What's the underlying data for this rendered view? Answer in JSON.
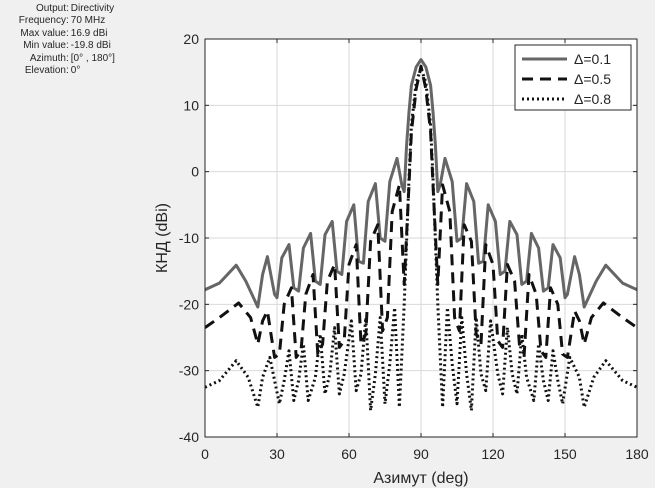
{
  "info_panel": [
    {
      "label": "Output",
      "value": "Directivity"
    },
    {
      "label": "Frequency",
      "value": "70 MHz"
    },
    {
      "label": "Max value",
      "value": "16.9 dBi"
    },
    {
      "label": "Min value",
      "value": "-19.8 dBi"
    },
    {
      "label": "Azimuth",
      "value": "[0° , 180°]"
    },
    {
      "label": "Elevation",
      "value": "0°"
    }
  ],
  "chart_data": {
    "type": "line",
    "title": "",
    "xlabel": "Азимут (deg)",
    "ylabel": "КНД (dBi)",
    "xlim": [
      0,
      180
    ],
    "ylim": [
      -40,
      20
    ],
    "xticks": [
      0,
      30,
      60,
      90,
      120,
      150,
      180
    ],
    "yticks": [
      20,
      10,
      0,
      -10,
      -20,
      -30,
      -40
    ],
    "xtick_labels": [
      "0",
      "30",
      "60",
      "90",
      "120",
      "150",
      "180"
    ],
    "ytick_labels": [
      "20",
      "10",
      "0",
      "-10",
      "-20",
      "-30",
      "-40"
    ],
    "grid": true,
    "legend_position": "top-right",
    "series": [
      {
        "name": "Δ=0.1",
        "style": "solid",
        "color": "#666666",
        "x": [
          0,
          6,
          13,
          17,
          22,
          24,
          26,
          29,
          30,
          32,
          35,
          37,
          39,
          41,
          44,
          46,
          48,
          50,
          53,
          55,
          57,
          59,
          62,
          64,
          66,
          68,
          71,
          73,
          75,
          77,
          80,
          82,
          83,
          84,
          85,
          86,
          88,
          90,
          92,
          94,
          95,
          96,
          97,
          98,
          100,
          103,
          105,
          107,
          109,
          112,
          114,
          116,
          118,
          121,
          123,
          125,
          127,
          130,
          132,
          134,
          136,
          139,
          141,
          143,
          145,
          148,
          150,
          151,
          154,
          156,
          158,
          163,
          167,
          174,
          180
        ],
        "y": [
          -17.8,
          -16.8,
          -14.1,
          -16.5,
          -20.4,
          -15.5,
          -12.8,
          -18.5,
          -19.0,
          -13.0,
          -11.0,
          -17.5,
          -18.0,
          -11.5,
          -9.3,
          -16.5,
          -17.0,
          -9.5,
          -7.5,
          -15.0,
          -15.5,
          -7.5,
          -5.0,
          -13.5,
          -13.8,
          -4.5,
          -1.8,
          -10.0,
          -10.5,
          -1.5,
          2.0,
          -2.0,
          -3.0,
          4.0,
          9.0,
          13.0,
          15.8,
          16.9,
          15.8,
          13.0,
          9.0,
          4.0,
          -3.0,
          -2.0,
          2.0,
          -1.5,
          -10.5,
          -10.0,
          -1.8,
          -4.5,
          -13.8,
          -13.5,
          -5.0,
          -7.5,
          -15.5,
          -15.0,
          -7.5,
          -9.5,
          -17.0,
          -16.5,
          -9.3,
          -11.5,
          -18.0,
          -17.5,
          -11.0,
          -13.0,
          -19.0,
          -18.5,
          -12.8,
          -15.5,
          -20.4,
          -16.5,
          -14.1,
          -16.8,
          -17.8
        ]
      },
      {
        "name": "Δ=0.5",
        "style": "dashed",
        "color": "#111111",
        "x": [
          0,
          6,
          14,
          19,
          22,
          24,
          26,
          29,
          31,
          33,
          36,
          38,
          40,
          42,
          45,
          47,
          49,
          51,
          54,
          56,
          58,
          60,
          63,
          65,
          67,
          69,
          72,
          74,
          76,
          78,
          81,
          83,
          85,
          86,
          88,
          90,
          92,
          94,
          95,
          97,
          99,
          102,
          104,
          106,
          108,
          111,
          113,
          115,
          117,
          120,
          122,
          124,
          126,
          129,
          131,
          133,
          135,
          138,
          140,
          142,
          144,
          147,
          149,
          151,
          154,
          156,
          158,
          161,
          166,
          174,
          180
        ],
        "y": [
          -23.5,
          -22.0,
          -19.8,
          -22.0,
          -26.0,
          -22.5,
          -21.0,
          -28.0,
          -27.5,
          -20.0,
          -17.5,
          -28.0,
          -27.0,
          -18.5,
          -15.5,
          -27.5,
          -26.0,
          -16.5,
          -14.0,
          -26.5,
          -25.5,
          -14.0,
          -11.0,
          -26.0,
          -24.5,
          -10.5,
          -8.0,
          -24.0,
          -22.0,
          -6.0,
          -2.0,
          -17.0,
          -2.0,
          6.0,
          12.5,
          15.9,
          12.5,
          6.0,
          -2.0,
          -17.0,
          -2.0,
          -6.0,
          -22.0,
          -24.0,
          -8.0,
          -10.5,
          -24.5,
          -26.0,
          -11.0,
          -14.0,
          -25.5,
          -26.5,
          -14.0,
          -16.5,
          -26.0,
          -27.5,
          -15.5,
          -18.5,
          -27.0,
          -28.0,
          -17.5,
          -20.0,
          -27.5,
          -28.0,
          -21.0,
          -22.5,
          -26.0,
          -22.0,
          -19.8,
          -22.0,
          -23.5
        ]
      },
      {
        "name": "Δ=0.8",
        "style": "dotted",
        "color": "#111111",
        "x": [
          0,
          6,
          13,
          18,
          22,
          24,
          27,
          31,
          33,
          35,
          37,
          39,
          41,
          43,
          46,
          48,
          50,
          52,
          54,
          56,
          58,
          61,
          63,
          65,
          67,
          69,
          71,
          73,
          75,
          77,
          79,
          81,
          83,
          85,
          86,
          88,
          90,
          92,
          94,
          95,
          97,
          99,
          101,
          103,
          105,
          107,
          109,
          111,
          113,
          115,
          117,
          119,
          122,
          124,
          126,
          128,
          130,
          132,
          134,
          137,
          139,
          141,
          143,
          145,
          147,
          149,
          152,
          156,
          158,
          162,
          167,
          174,
          180
        ],
        "y": [
          -32.5,
          -31.5,
          -28.5,
          -31.0,
          -35.5,
          -31.0,
          -28.0,
          -35.0,
          -31.5,
          -27.0,
          -34.5,
          -31.5,
          -26.0,
          -34.5,
          -31.0,
          -24.5,
          -33.5,
          -30.5,
          -23.5,
          -33.5,
          -30.5,
          -22.5,
          -33.0,
          -30.5,
          -22.0,
          -36.0,
          -30.5,
          -22.0,
          -35.0,
          -29.0,
          -20.5,
          -35.5,
          -20.0,
          -1.0,
          7.0,
          13.5,
          15.6,
          13.5,
          7.0,
          -1.0,
          -20.0,
          -35.5,
          -20.5,
          -29.0,
          -35.0,
          -22.0,
          -30.5,
          -36.0,
          -22.0,
          -30.5,
          -33.0,
          -22.5,
          -30.5,
          -33.5,
          -23.5,
          -30.5,
          -33.5,
          -24.5,
          -31.0,
          -34.5,
          -26.0,
          -31.5,
          -34.5,
          -27.0,
          -31.5,
          -35.0,
          -28.0,
          -31.0,
          -35.5,
          -31.0,
          -28.5,
          -31.5,
          -32.5
        ]
      }
    ]
  }
}
